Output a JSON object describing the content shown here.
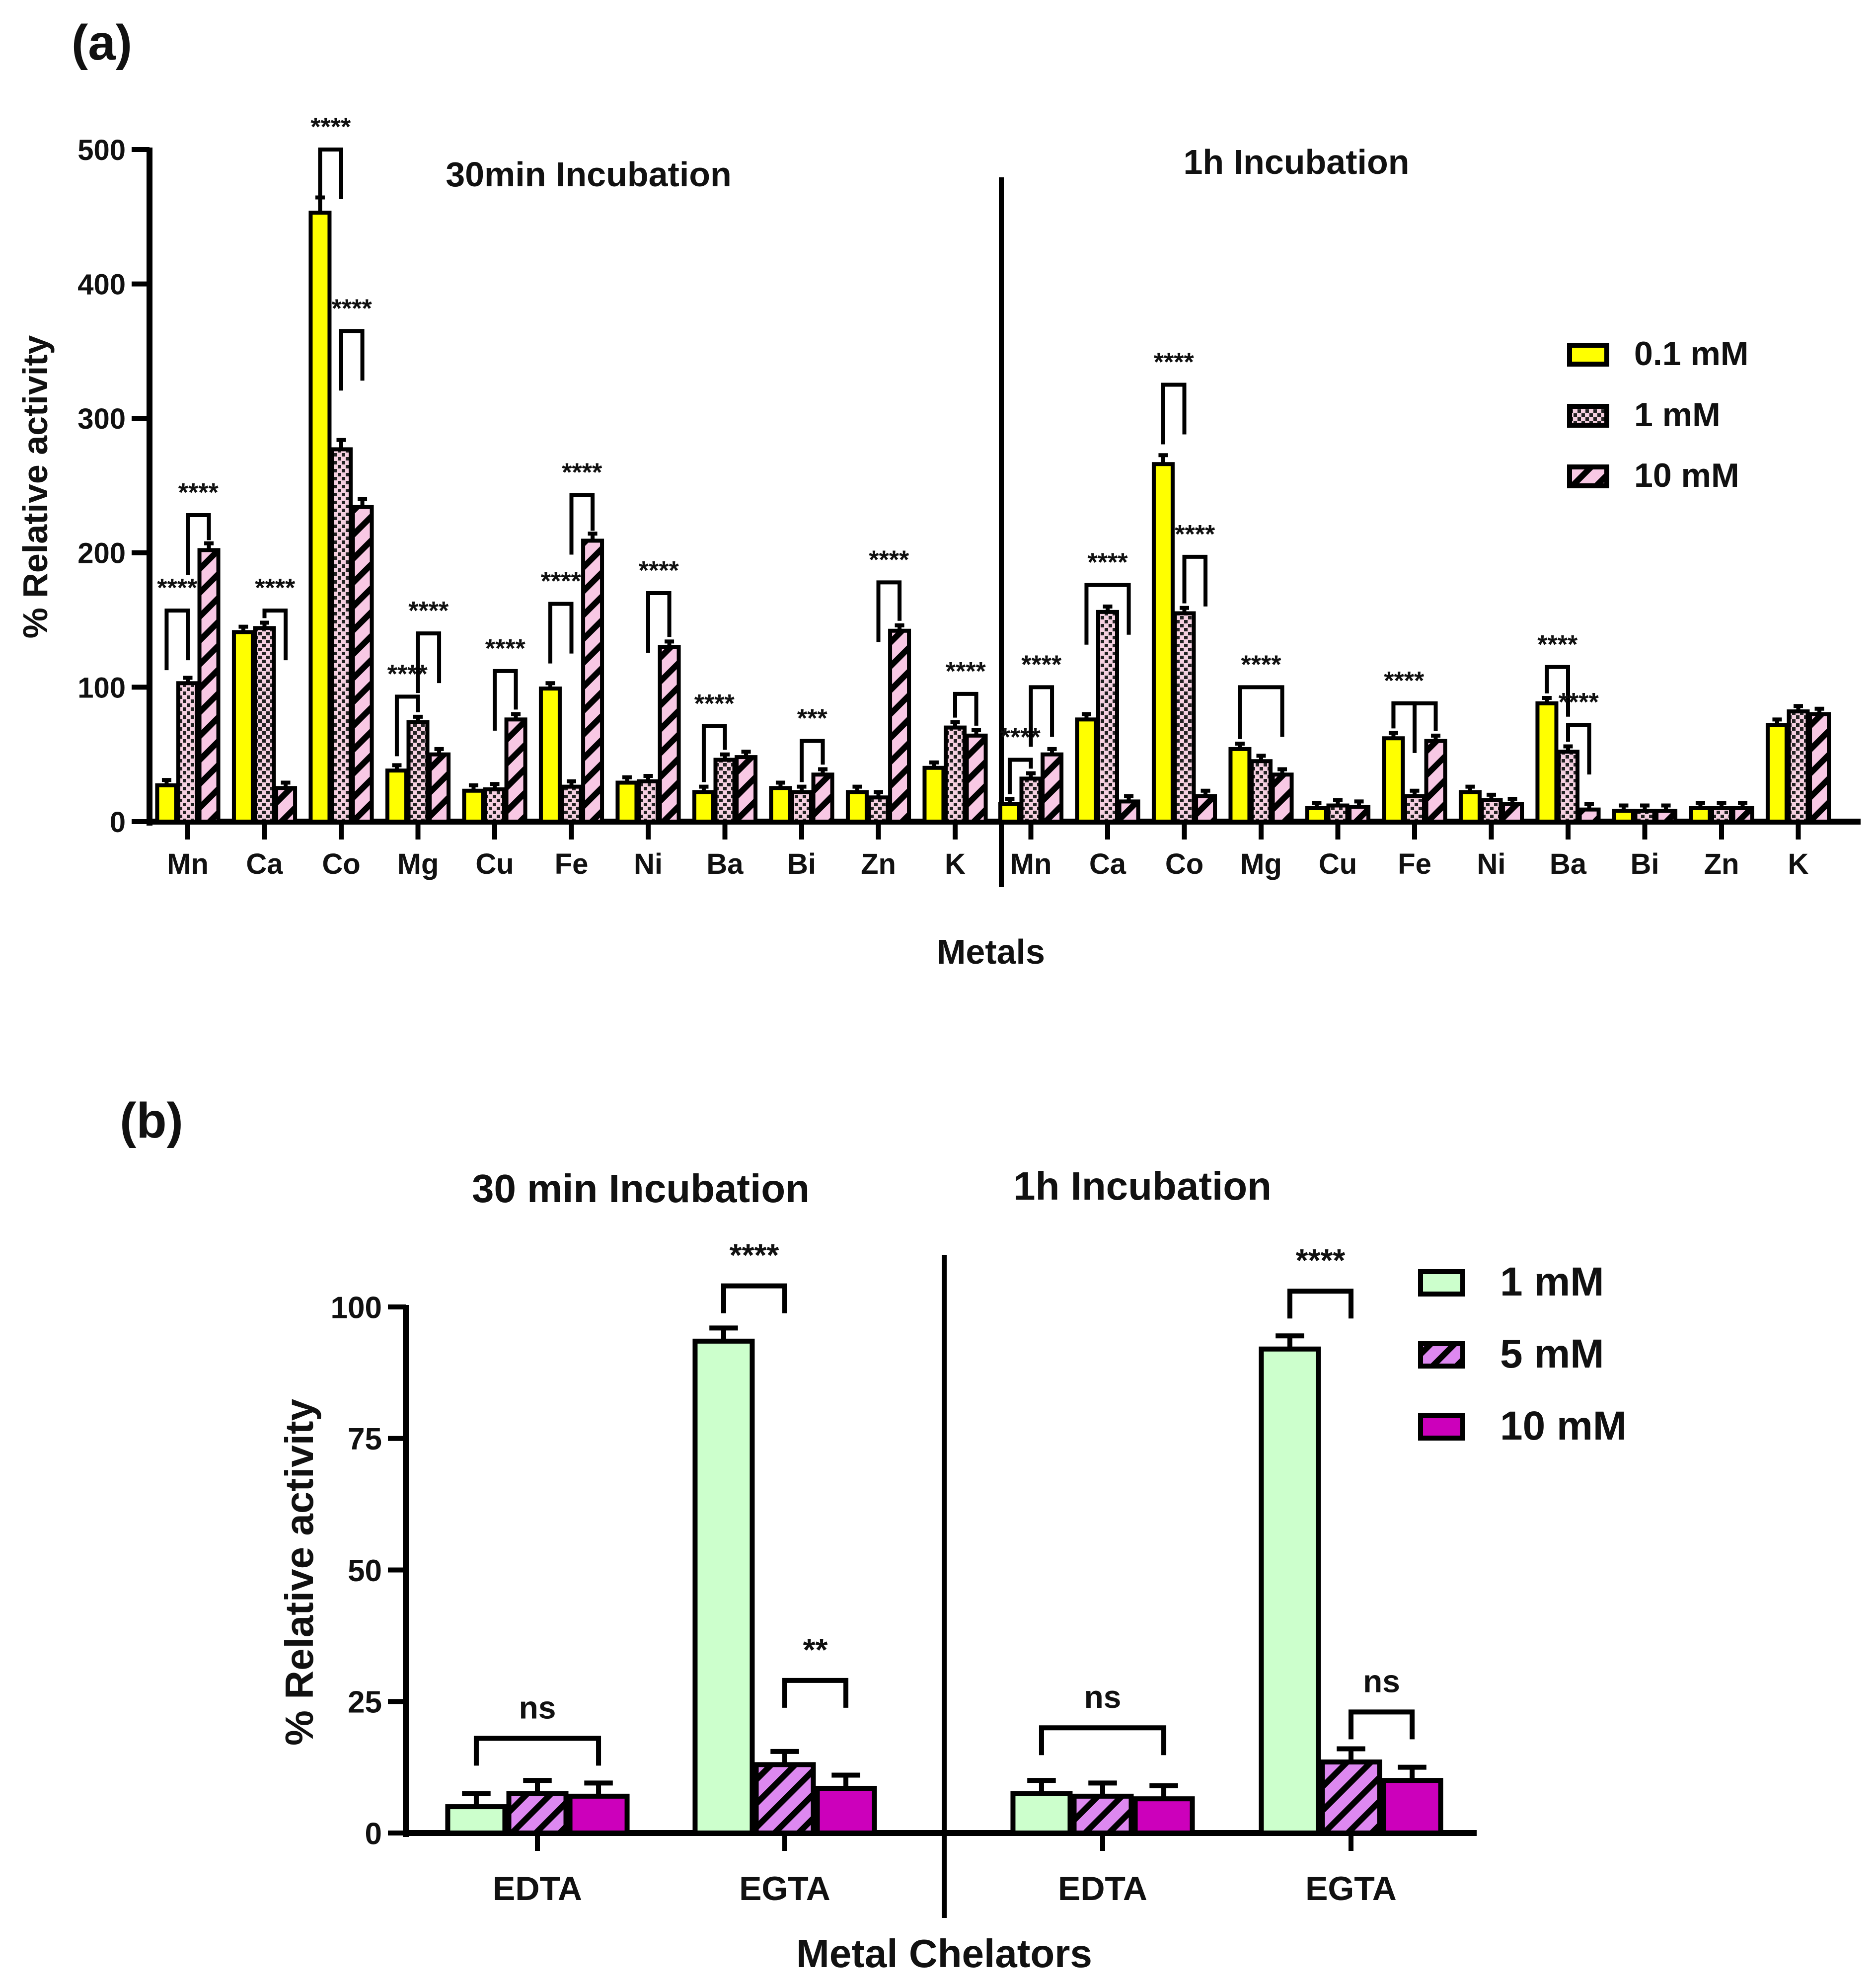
{
  "chart_data": [
    {
      "type": "bar",
      "panel_label": "(a)",
      "ylabel": "% Relative activity",
      "xlabel": "Metals",
      "ylim": [
        0,
        500
      ],
      "yticks": [
        0,
        100,
        200,
        300,
        400,
        500
      ],
      "legend": {
        "placement": "right",
        "entries": [
          "0.1 mM",
          "1 mM",
          "10 mM"
        ]
      },
      "colors": {
        "0.1 mM": "#ffff00",
        "1 mM": "#f5d0e0",
        "10 mM": "#f8c8e4"
      },
      "groups": [
        {
          "title": "30min Incubation",
          "categories": [
            "Mn",
            "Ca",
            "Co",
            "Mg",
            "Cu",
            "Fe",
            "Ni",
            "Ba",
            "Bi",
            "Zn",
            "K"
          ],
          "series": [
            {
              "name": "0.1 mM",
              "values": [
                27,
                141,
                453,
                38,
                23,
                99,
                29,
                22,
                25,
                22,
                40
              ]
            },
            {
              "name": "1 mM",
              "values": [
                103,
                144,
                277,
                74,
                24,
                26,
                30,
                46,
                22,
                18,
                70
              ]
            },
            {
              "name": "10 mM",
              "values": [
                202,
                25,
                234,
                50,
                76,
                209,
                130,
                48,
                35,
                142,
                64
              ]
            }
          ],
          "annotations": [
            {
              "cat": 0,
              "from": 0,
              "to": 1,
              "y": 157,
              "label": "****"
            },
            {
              "cat": 0,
              "from": 1,
              "to": 2,
              "y": 228,
              "label": "****"
            },
            {
              "cat": 1,
              "from": 1,
              "to": 2,
              "y": 157,
              "label": "****"
            },
            {
              "cat": 2,
              "from": 0,
              "to": 1,
              "y": 500,
              "label": "****"
            },
            {
              "cat": 2,
              "from": 1,
              "to": 2,
              "y": 365,
              "label": "****"
            },
            {
              "cat": 3,
              "from": 0,
              "to": 1,
              "y": 93,
              "label": "****"
            },
            {
              "cat": 3,
              "from": 1,
              "to": 2,
              "y": 140,
              "label": "****"
            },
            {
              "cat": 4,
              "from": 1,
              "to": 2,
              "y": 112,
              "label": "****"
            },
            {
              "cat": 5,
              "from": 0,
              "to": 1,
              "y": 162,
              "label": "****"
            },
            {
              "cat": 5,
              "from": 1,
              "to": 2,
              "y": 243,
              "label": "****"
            },
            {
              "cat": 6,
              "from": 1,
              "to": 2,
              "y": 170,
              "label": "****"
            },
            {
              "cat": 7,
              "from": 0,
              "to": 1,
              "y": 71,
              "label": "****"
            },
            {
              "cat": 8,
              "from": 1,
              "to": 2,
              "y": 60,
              "label": "***"
            },
            {
              "cat": 9,
              "from": 1,
              "to": 2,
              "y": 178,
              "label": "****"
            },
            {
              "cat": 10,
              "from": 1,
              "to": 2,
              "y": 95,
              "label": "****"
            }
          ]
        },
        {
          "title": "1h Incubation",
          "categories": [
            "Mn",
            "Ca",
            "Co",
            "Mg",
            "Cu",
            "Fe",
            "Ni",
            "Ba",
            "Bi",
            "Zn",
            "K"
          ],
          "series": [
            {
              "name": "0.1 mM",
              "values": [
                13,
                76,
                266,
                54,
                10,
                62,
                22,
                88,
                8,
                10,
                72
              ]
            },
            {
              "name": "1 mM",
              "values": [
                32,
                156,
                155,
                45,
                12,
                19,
                16,
                52,
                8,
                10,
                82
              ]
            },
            {
              "name": "10 mM",
              "values": [
                50,
                15,
                19,
                35,
                11,
                60,
                13,
                9,
                8,
                10,
                80
              ]
            }
          ],
          "annotations": [
            {
              "cat": 0,
              "from": 0,
              "to": 1,
              "y": 46,
              "label": "****"
            },
            {
              "cat": 0,
              "from": 1,
              "to": 2,
              "y": 100,
              "label": "****"
            },
            {
              "cat": 1,
              "from": 0,
              "to": 2,
              "y": 176,
              "label": "****"
            },
            {
              "cat": 2,
              "from": 0,
              "to": 1,
              "y": 325,
              "label": "****"
            },
            {
              "cat": 2,
              "from": 1,
              "to": 2,
              "y": 197,
              "label": "****"
            },
            {
              "cat": 3,
              "from": 0,
              "to": 2,
              "y": 100,
              "label": "****"
            },
            {
              "cat": 5,
              "from": 0,
              "to": 1,
              "y": 88,
              "label": "****"
            },
            {
              "cat": 5,
              "from": 0,
              "to": 2,
              "y": 88,
              "label": ""
            },
            {
              "cat": 7,
              "from": 0,
              "to": 1,
              "y": 115,
              "label": "****"
            },
            {
              "cat": 7,
              "from": 1,
              "to": 2,
              "y": 72,
              "label": "****"
            }
          ]
        }
      ]
    },
    {
      "type": "bar",
      "panel_label": "(b)",
      "ylabel": "% Relative activity",
      "xlabel": "Metal Chelators",
      "ylim": [
        0,
        100
      ],
      "yticks": [
        0,
        25,
        50,
        75,
        100
      ],
      "legend": {
        "placement": "right",
        "entries": [
          "1 mM",
          "5 mM",
          "10 mM"
        ]
      },
      "colors": {
        "1 mM": "#ccffcc",
        "5 mM": "#dd88f0",
        "10 mM": "#cc00bb"
      },
      "groups": [
        {
          "title": "30 min Incubation",
          "categories": [
            "EDTA",
            "EGTA"
          ],
          "series": [
            {
              "name": "1 mM",
              "values": [
                5,
                93.5
              ]
            },
            {
              "name": "5 mM",
              "values": [
                7.5,
                13
              ]
            },
            {
              "name": "10 mM",
              "values": [
                7,
                8.5
              ]
            }
          ],
          "annotations": [
            {
              "cat": 0,
              "from": 0,
              "to": 2,
              "y": 18,
              "label": "ns"
            },
            {
              "cat": 1,
              "from": 0,
              "to": 1,
              "y": 104,
              "label": "****"
            },
            {
              "cat": 1,
              "from": 1,
              "to": 2,
              "y": 29,
              "label": "**"
            }
          ]
        },
        {
          "title": "1h Incubation",
          "categories": [
            "EDTA",
            "EGTA"
          ],
          "series": [
            {
              "name": "1 mM",
              "values": [
                7.5,
                92
              ]
            },
            {
              "name": "5 mM",
              "values": [
                7,
                13.5
              ]
            },
            {
              "name": "10 mM",
              "values": [
                6.5,
                10
              ]
            }
          ],
          "annotations": [
            {
              "cat": 0,
              "from": 0,
              "to": 2,
              "y": 20,
              "label": "ns"
            },
            {
              "cat": 1,
              "from": 0,
              "to": 1,
              "y": 103,
              "label": "****"
            },
            {
              "cat": 1,
              "from": 1,
              "to": 2,
              "y": 23,
              "label": "ns"
            }
          ]
        }
      ]
    }
  ]
}
